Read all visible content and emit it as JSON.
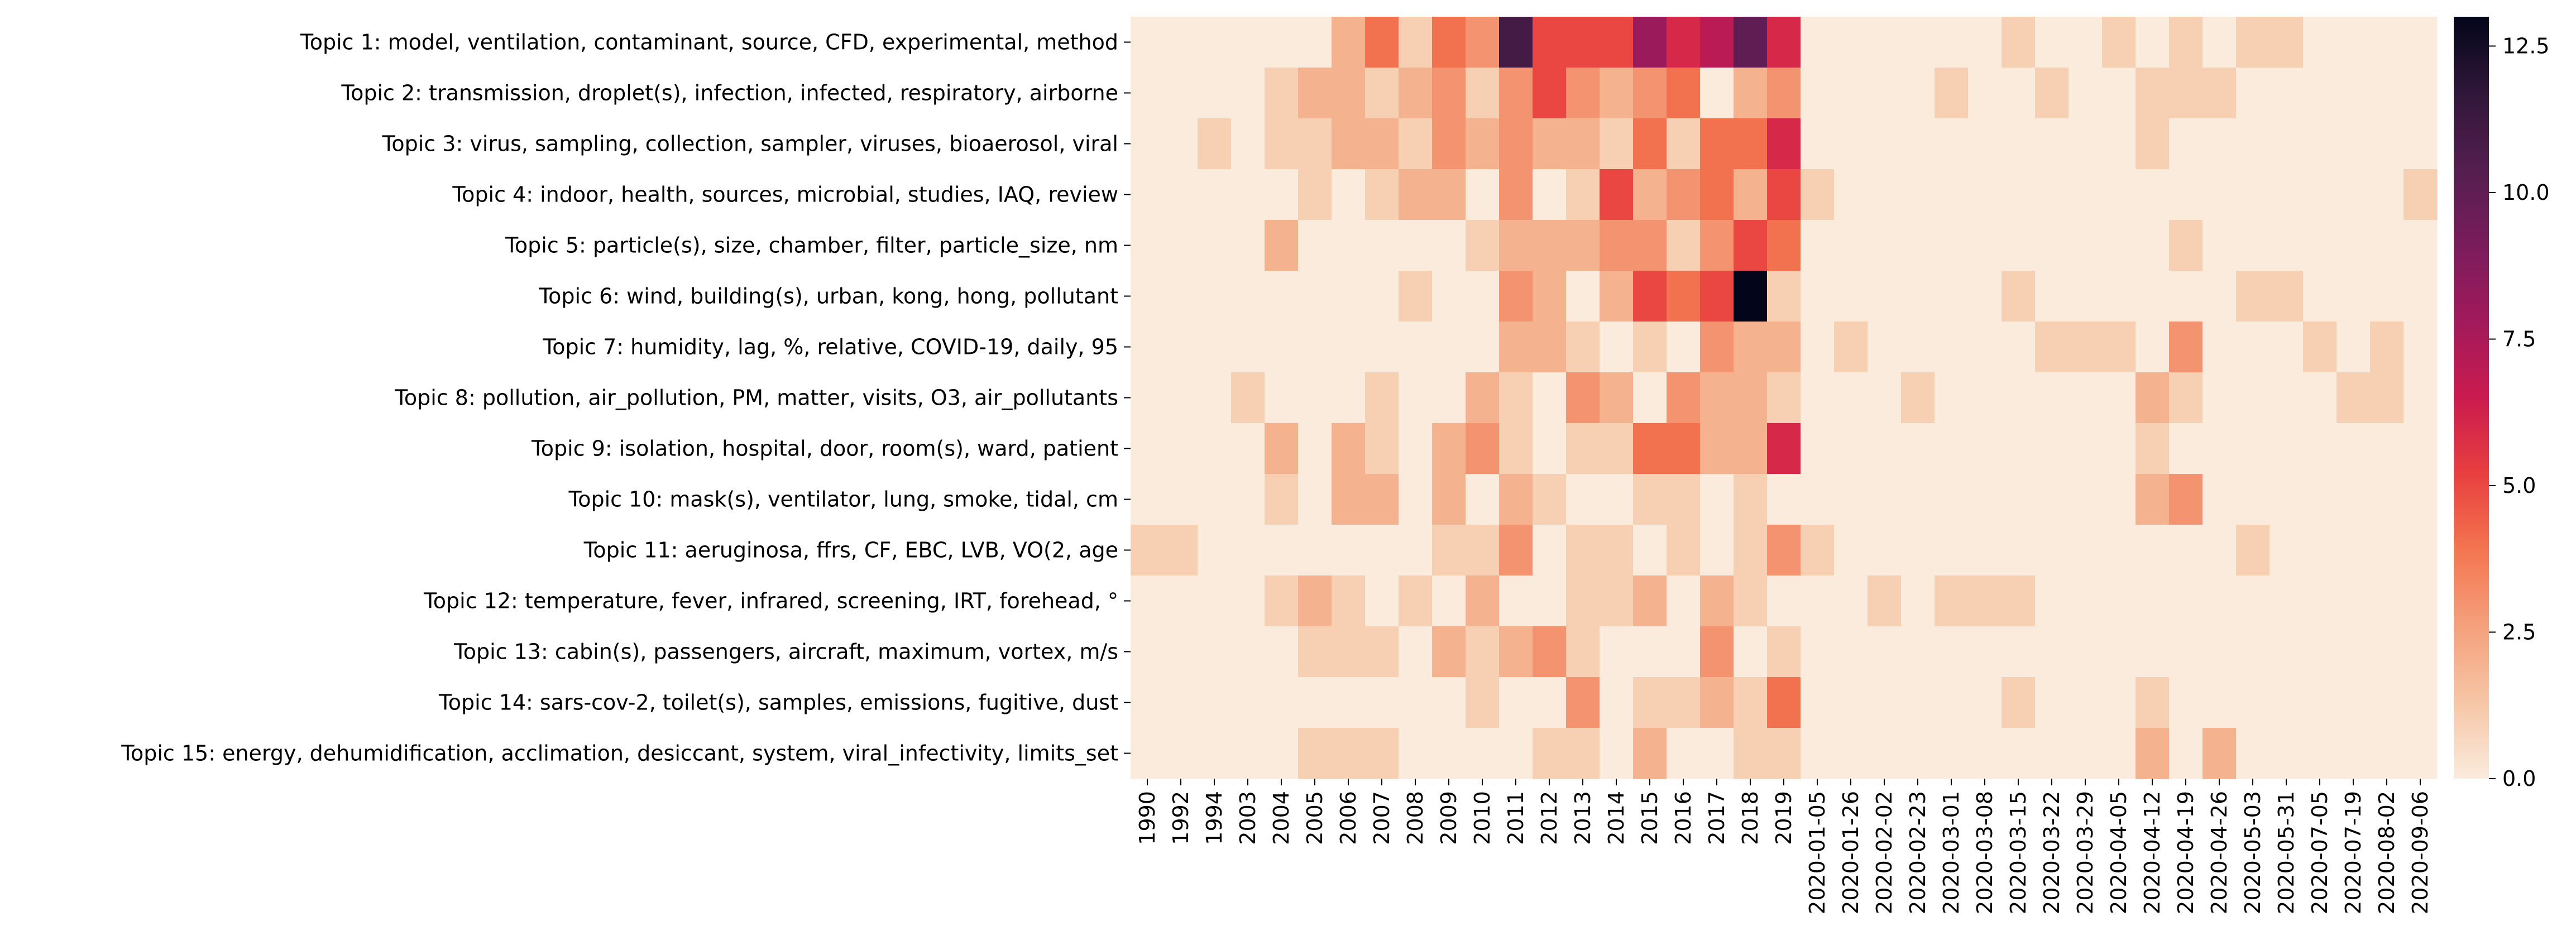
{
  "chart_data": {
    "type": "heatmap",
    "title": "",
    "xlabel": "",
    "ylabel": "",
    "colormap": "rocket_r",
    "vmin": 0,
    "vmax": 13,
    "colorbar_ticks": [
      "0.0",
      "2.5",
      "5.0",
      "7.5",
      "10.0",
      "12.5"
    ],
    "colorbar_tick_values": [
      0,
      2.5,
      5,
      7.5,
      10,
      12.5
    ],
    "x": [
      "1990",
      "1992",
      "1994",
      "2003",
      "2004",
      "2005",
      "2006",
      "2007",
      "2008",
      "2009",
      "2010",
      "2011",
      "2012",
      "2013",
      "2014",
      "2015",
      "2016",
      "2017",
      "2018",
      "2019",
      "2020-01-05",
      "2020-01-26",
      "2020-02-02",
      "2020-02-23",
      "2020-03-01",
      "2020-03-08",
      "2020-03-15",
      "2020-03-22",
      "2020-03-29",
      "2020-04-05",
      "2020-04-12",
      "2020-04-19",
      "2020-04-26",
      "2020-05-03",
      "2020-05-31",
      "2020-07-05",
      "2020-07-19",
      "2020-08-02",
      "2020-09-06"
    ],
    "y": [
      "Topic 1: model, ventilation, contaminant, source, CFD, experimental, method",
      "Topic 2: transmission, droplet(s), infection, infected, respiratory, airborne",
      "Topic 3: virus, sampling, collection, sampler, viruses, bioaerosol, viral",
      "Topic 4: indoor, health, sources, microbial, studies, IAQ, review",
      "Topic 5: particle(s), size, chamber, filter, particle_size, nm",
      "Topic 6: wind, building(s), urban, kong, hong, pollutant",
      "Topic 7: humidity, lag, %, relative, COVID-19, daily, 95",
      "Topic 8: pollution, air_pollution, PM, matter, visits, O3, air_pollutants",
      "Topic 9: isolation, hospital, door, room(s), ward, patient",
      "Topic 10: mask(s), ventilator, lung, smoke, tidal, cm",
      "Topic 11: aeruginosa, ffrs, CF, EBC, LVB, VO(2, age",
      "Topic 12: temperature, fever, infrared, screening, IRT, forehead, °",
      "Topic 13: cabin(s), passengers, aircraft, maximum, vortex, m/s",
      "Topic 14: sars-cov-2, toilet(s), samples, emissions, fugitive, dust",
      "Topic 15: energy, dehumidification, acclimation, desiccant, system, viral_infectivity, limits_set"
    ],
    "values": [
      [
        0,
        0,
        0,
        0,
        0,
        0,
        2,
        4,
        1,
        4,
        3,
        11,
        5,
        5,
        5,
        8,
        6,
        7,
        10,
        6,
        0,
        0,
        0,
        0,
        0,
        0,
        1,
        0,
        0,
        1,
        0,
        1,
        0,
        1,
        1,
        0,
        0,
        0,
        0
      ],
      [
        0,
        0,
        0,
        0,
        1,
        2,
        2,
        1,
        2,
        3,
        1,
        3,
        5,
        3,
        2,
        3,
        4,
        0,
        2,
        3,
        0,
        0,
        0,
        0,
        1,
        0,
        0,
        1,
        0,
        0,
        1,
        1,
        1,
        0,
        0,
        0,
        0,
        0,
        0
      ],
      [
        0,
        0,
        1,
        0,
        1,
        1,
        2,
        2,
        1,
        3,
        2,
        3,
        2,
        2,
        1,
        4,
        1,
        4,
        4,
        6,
        0,
        0,
        0,
        0,
        0,
        0,
        0,
        0,
        0,
        0,
        1,
        0,
        0,
        0,
        0,
        0,
        0,
        0,
        0
      ],
      [
        0,
        0,
        0,
        0,
        0,
        1,
        0,
        1,
        2,
        2,
        0,
        3,
        0,
        1,
        5,
        2,
        3,
        4,
        2,
        5,
        1,
        0,
        0,
        0,
        0,
        0,
        0,
        0,
        0,
        0,
        0,
        0,
        0,
        0,
        0,
        0,
        0,
        0,
        1
      ],
      [
        0,
        0,
        0,
        0,
        2,
        0,
        0,
        0,
        0,
        0,
        1,
        2,
        2,
        2,
        3,
        3,
        1,
        3,
        5,
        4,
        0,
        0,
        0,
        0,
        0,
        0,
        0,
        0,
        0,
        0,
        0,
        1,
        0,
        0,
        0,
        0,
        0,
        0,
        0
      ],
      [
        0,
        0,
        0,
        0,
        0,
        0,
        0,
        0,
        1,
        0,
        0,
        3,
        2,
        0,
        2,
        5,
        4,
        5,
        13,
        1,
        0,
        0,
        0,
        0,
        0,
        0,
        1,
        0,
        0,
        0,
        0,
        0,
        0,
        1,
        1,
        0,
        0,
        0,
        0
      ],
      [
        0,
        0,
        0,
        0,
        0,
        0,
        0,
        0,
        0,
        0,
        0,
        2,
        2,
        1,
        0,
        1,
        0,
        3,
        2,
        2,
        0,
        1,
        0,
        0,
        0,
        0,
        0,
        1,
        1,
        1,
        0,
        3,
        0,
        0,
        0,
        1,
        0,
        1,
        0
      ],
      [
        0,
        0,
        0,
        1,
        0,
        0,
        0,
        1,
        0,
        0,
        2,
        1,
        0,
        3,
        2,
        0,
        3,
        2,
        2,
        1,
        0,
        0,
        0,
        1,
        0,
        0,
        0,
        0,
        0,
        0,
        2,
        1,
        0,
        0,
        0,
        0,
        1,
        1,
        0
      ],
      [
        0,
        0,
        0,
        0,
        2,
        0,
        2,
        1,
        0,
        2,
        3,
        1,
        0,
        1,
        1,
        4,
        4,
        2,
        2,
        6,
        0,
        0,
        0,
        0,
        0,
        0,
        0,
        0,
        0,
        0,
        1,
        0,
        0,
        0,
        0,
        0,
        0,
        0,
        0
      ],
      [
        0,
        0,
        0,
        0,
        1,
        0,
        2,
        2,
        0,
        2,
        0,
        2,
        1,
        0,
        0,
        1,
        1,
        0,
        1,
        0,
        0,
        0,
        0,
        0,
        0,
        0,
        0,
        0,
        0,
        0,
        2,
        3,
        0,
        0,
        0,
        0,
        0,
        0,
        0
      ],
      [
        1,
        1,
        0,
        0,
        0,
        0,
        0,
        0,
        0,
        1,
        1,
        3,
        0,
        1,
        1,
        0,
        1,
        0,
        1,
        3,
        1,
        0,
        0,
        0,
        0,
        0,
        0,
        0,
        0,
        0,
        0,
        0,
        0,
        1,
        0,
        0,
        0,
        0,
        0
      ],
      [
        0,
        0,
        0,
        0,
        1,
        2,
        1,
        0,
        1,
        0,
        2,
        0,
        0,
        1,
        1,
        2,
        0,
        2,
        1,
        0,
        0,
        0,
        1,
        0,
        1,
        1,
        1,
        0,
        0,
        0,
        0,
        0,
        0,
        0,
        0,
        0,
        0,
        0,
        0
      ],
      [
        0,
        0,
        0,
        0,
        0,
        1,
        1,
        1,
        0,
        2,
        1,
        2,
        3,
        1,
        0,
        0,
        0,
        3,
        0,
        1,
        0,
        0,
        0,
        0,
        0,
        0,
        0,
        0,
        0,
        0,
        0,
        0,
        0,
        0,
        0,
        0,
        0,
        0,
        0
      ],
      [
        0,
        0,
        0,
        0,
        0,
        0,
        0,
        0,
        0,
        0,
        1,
        0,
        0,
        3,
        0,
        1,
        1,
        2,
        1,
        4,
        0,
        0,
        0,
        0,
        0,
        0,
        1,
        0,
        0,
        0,
        1,
        0,
        0,
        0,
        0,
        0,
        0,
        0,
        0
      ],
      [
        0,
        0,
        0,
        0,
        0,
        1,
        1,
        1,
        0,
        0,
        0,
        0,
        1,
        1,
        0,
        2,
        0,
        0,
        1,
        1,
        0,
        0,
        0,
        0,
        0,
        0,
        0,
        0,
        0,
        0,
        2,
        0,
        2,
        0,
        0,
        0,
        0,
        0,
        0
      ]
    ]
  }
}
